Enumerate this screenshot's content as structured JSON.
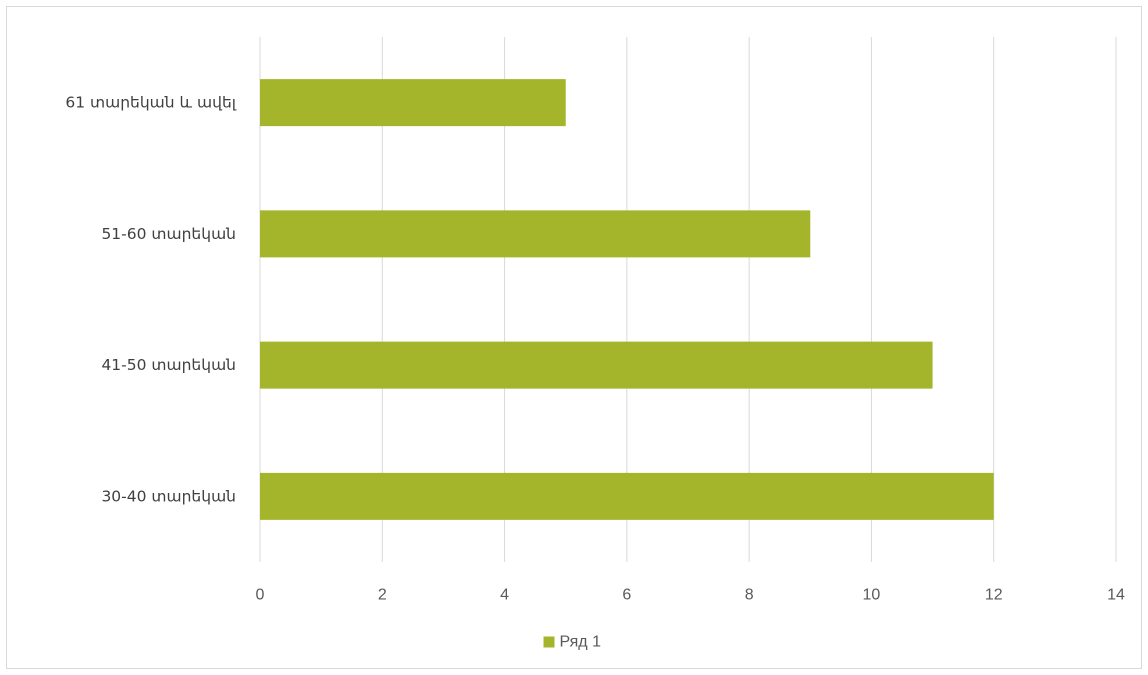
{
  "chart_data": {
    "type": "bar",
    "orientation": "horizontal",
    "categories": [
      "30-40 տարեկան",
      "41-50 տարեկան",
      "51-60 տարեկան",
      "61 տարեկան և ավել"
    ],
    "series": [
      {
        "name": "Ряд 1",
        "values": [
          12,
          11,
          9,
          5
        ],
        "color": "#a5b52b"
      }
    ],
    "title": "",
    "xlabel": "",
    "ylabel": "",
    "xlim": [
      0,
      14
    ],
    "xticks": [
      0,
      2,
      4,
      6,
      8,
      10,
      12,
      14
    ],
    "grid": true,
    "legend": "bottom",
    "gridline_color": "#d9d9d9"
  }
}
